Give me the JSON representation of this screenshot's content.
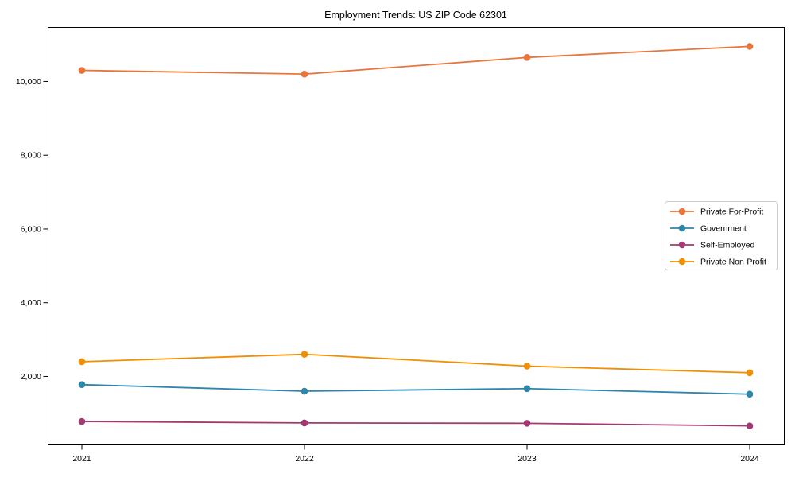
{
  "chart_data": {
    "type": "line",
    "title": "Employment Trends: US ZIP Code 62301",
    "x": [
      2021,
      2022,
      2023,
      2024
    ],
    "x_tick_labels": [
      "2021",
      "2022",
      "2023",
      "2024"
    ],
    "y_ticks": [
      2000,
      4000,
      6000,
      8000,
      10000
    ],
    "y_tick_labels": [
      "2,000",
      "4,000",
      "6,000",
      "8,000",
      "10,000"
    ],
    "ylim": [
      145,
      11465
    ],
    "grid": false,
    "legend_position": "center right",
    "series": [
      {
        "name": "Private For-Profit",
        "color": "#E8763C",
        "values": [
          10300,
          10200,
          10650,
          10950
        ]
      },
      {
        "name": "Government",
        "color": "#2E86AB",
        "values": [
          1780,
          1600,
          1670,
          1520
        ]
      },
      {
        "name": "Self-Employed",
        "color": "#A23B72",
        "values": [
          780,
          740,
          730,
          660
        ]
      },
      {
        "name": "Private Non-Profit",
        "color": "#F18F01",
        "values": [
          2400,
          2600,
          2280,
          2100
        ]
      }
    ]
  }
}
